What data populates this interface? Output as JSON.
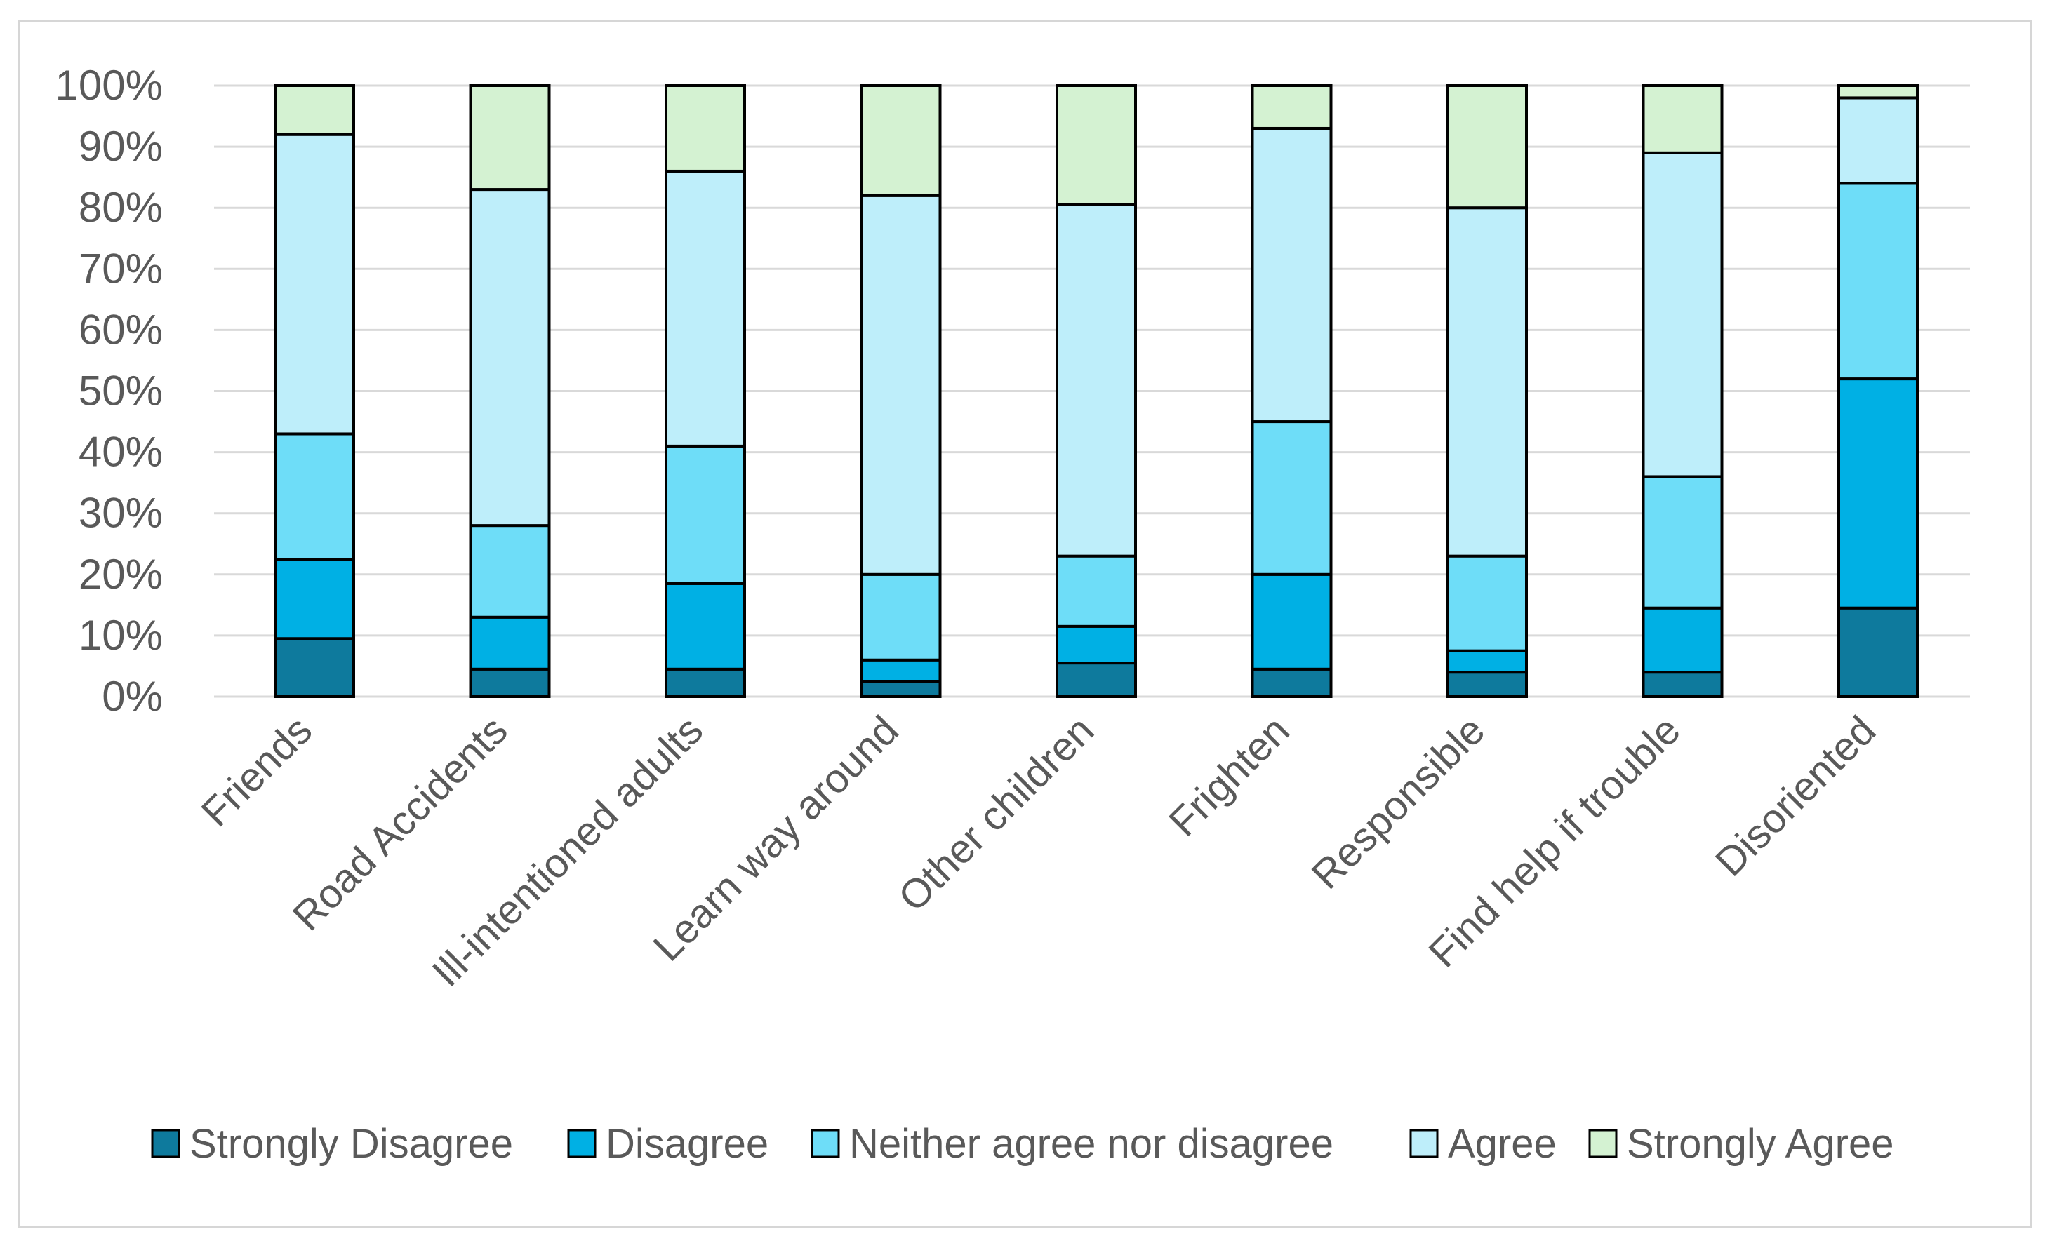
{
  "chart_data": {
    "type": "bar",
    "stacked": true,
    "percent_stacked": true,
    "title": "",
    "xlabel": "",
    "ylabel": "",
    "ylim": [
      0,
      100
    ],
    "y_ticks": [
      "0%",
      "10%",
      "20%",
      "30%",
      "40%",
      "50%",
      "60%",
      "70%",
      "80%",
      "90%",
      "100%"
    ],
    "grid": true,
    "legend_position": "bottom",
    "categories": [
      "Friends",
      "Road Accidents",
      "Ill-intentioned adults",
      "Learn way around",
      "Other children",
      "Frighten",
      "Responsible",
      "Find help if trouble",
      "Disoriented"
    ],
    "series": [
      {
        "name": "Strongly Disagree",
        "color": "#0E7A9D",
        "values": [
          9.5,
          4.5,
          4.5,
          2.5,
          5.5,
          4.5,
          4.0,
          4.0,
          14.5
        ]
      },
      {
        "name": "Disagree",
        "color": "#00B0E4",
        "values": [
          13.0,
          8.5,
          14.0,
          3.5,
          6.0,
          15.5,
          3.5,
          10.5,
          37.5
        ]
      },
      {
        "name": "Neither agree nor disagree",
        "color": "#6EDDF8",
        "values": [
          20.5,
          15.0,
          22.5,
          14.0,
          11.5,
          25.0,
          15.5,
          21.5,
          32.0
        ]
      },
      {
        "name": "Agree",
        "color": "#BEEEFA",
        "values": [
          49.0,
          55.0,
          45.0,
          62.0,
          57.5,
          48.0,
          57.0,
          53.0,
          14.0
        ]
      },
      {
        "name": "Strongly Agree",
        "color": "#D4F2D2",
        "values": [
          8.0,
          17.0,
          14.0,
          18.0,
          19.5,
          7.0,
          20.0,
          11.0,
          2.0
        ]
      }
    ],
    "colors": {
      "gridline": "#d9d9d9",
      "axis_text": "#595959",
      "bar_outline": "#000000",
      "frame_border": "#d6d6d6"
    }
  }
}
